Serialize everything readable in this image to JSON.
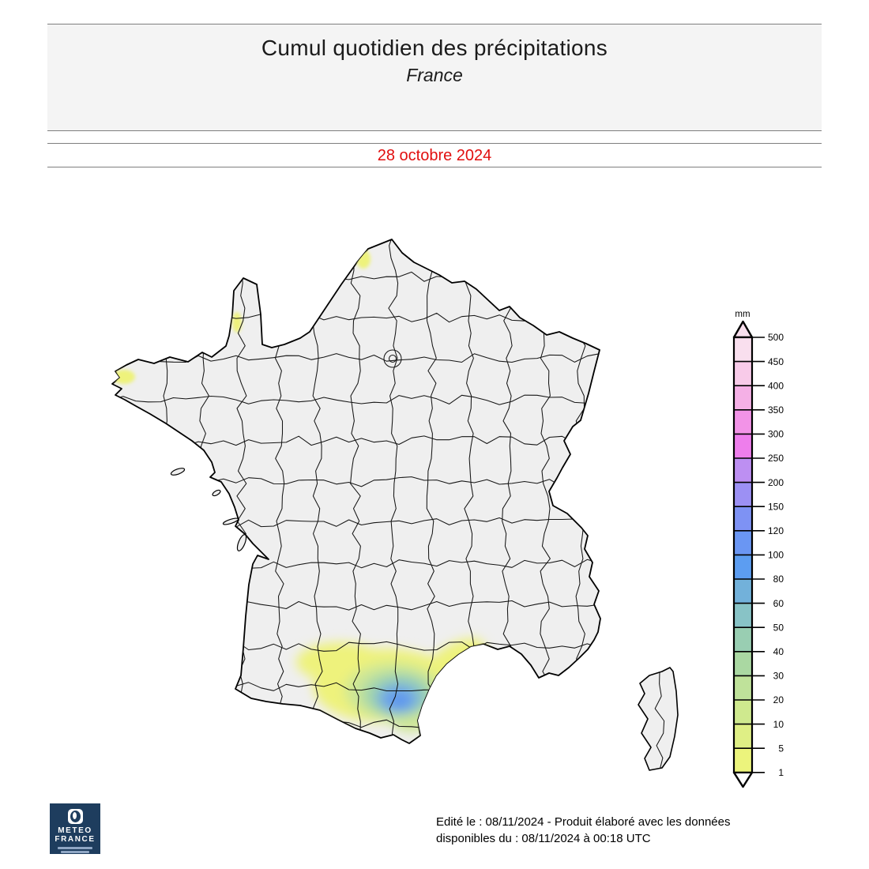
{
  "header": {
    "title": "Cumul quotidien des précipitations",
    "subtitle": "France"
  },
  "date_banner": {
    "text": "28 octobre 2024",
    "color": "#e10e0e"
  },
  "legend": {
    "unit": "mm",
    "ticks": [
      500,
      450,
      400,
      350,
      300,
      250,
      200,
      150,
      120,
      100,
      80,
      60,
      50,
      40,
      30,
      20,
      10,
      5,
      1
    ],
    "colors": [
      "#f9dfee",
      "#f8cbe9",
      "#f5b0e6",
      "#f293e7",
      "#ee7eec",
      "#bd8ff2",
      "#9c90f4",
      "#7e92f4",
      "#6a96f3",
      "#5c9df1",
      "#72b1da",
      "#88c3c6",
      "#99ceb2",
      "#aad8a2",
      "#bfe29a",
      "#cfe98e",
      "#dfef85",
      "#ecf47c"
    ]
  },
  "map": {
    "land_fill": "#efefef",
    "border_color": "#000000",
    "palette": {
      "rain_1_10": "#eef27b",
      "rain_10_30": "#cfe795",
      "rain_30_50": "#a9d8a8",
      "rain_50_60": "#8ac4c4",
      "rain_60_80": "#6ea5e8",
      "rain_80_100": "#5d96ee"
    },
    "precipitation_areas": [
      {
        "area": "Pyrénées-Orientales / Aude (Roussillon)",
        "peak_mm": "80-100"
      },
      {
        "area": "Occitanie : Haute-Garonne, Tarn, Ariège, Aude, Hérault",
        "range_mm": "1-50"
      },
      {
        "area": "Côte du Pas-de-Calais",
        "range_mm": "1-5"
      },
      {
        "area": "Ouest du Cotentin",
        "range_mm": "1-5"
      },
      {
        "area": "Pointe du Finistère",
        "range_mm": "1-5"
      }
    ]
  },
  "footer": {
    "line1": "Edité le : 08/11/2024 - Produit élaboré avec les données",
    "line2": "disponibles du : 08/11/2024 à 00:18 UTC"
  },
  "logo": {
    "line1": "METEO",
    "line2": "FRANCE"
  }
}
